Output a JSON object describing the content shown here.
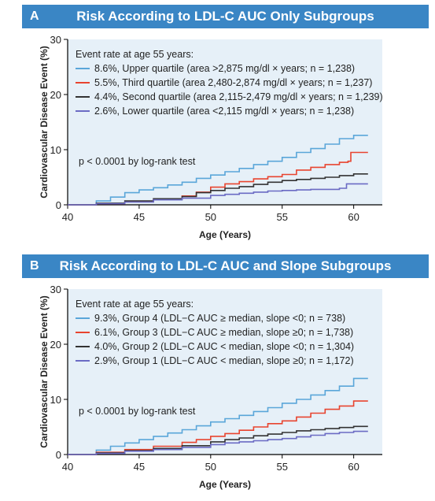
{
  "panels": [
    {
      "letter": "A",
      "title": "Risk According to LDL-C AUC Only Subgroups",
      "legend_header": "Event rate at age 55 years:",
      "pvalue": "p < 0.0001 by log-rank test"
    },
    {
      "letter": "B",
      "title": "Risk According to LDL-C AUC and Slope Subgroups",
      "legend_header": "Event rate at age 55 years:",
      "pvalue": "p < 0.0001 by log-rank test"
    }
  ],
  "chart_data": [
    {
      "type": "line",
      "title": "Risk According to LDL-C AUC Only Subgroups",
      "xlabel": "Age (Years)",
      "ylabel": "Cardiovascular Disease Event (%)",
      "xlim": [
        40,
        62
      ],
      "ylim": [
        0,
        30
      ],
      "xticks": [
        40,
        45,
        50,
        55,
        60
      ],
      "yticks": [
        0,
        10,
        20,
        30
      ],
      "grid": false,
      "legend_position": "top-left",
      "series": [
        {
          "name": "8.6%, Upper quartile (area >2,875 mg/dl × years; n = 1,238)",
          "color": "#5aa6d9",
          "points": [
            [
              40,
              0
            ],
            [
              42,
              0.7
            ],
            [
              43,
              1.4
            ],
            [
              44,
              2.2
            ],
            [
              45,
              2.7
            ],
            [
              46,
              3.1
            ],
            [
              47,
              3.6
            ],
            [
              48,
              4.1
            ],
            [
              49,
              4.8
            ],
            [
              50,
              5.4
            ],
            [
              51,
              6.0
            ],
            [
              52,
              6.6
            ],
            [
              53,
              7.3
            ],
            [
              54,
              7.9
            ],
            [
              55,
              8.6
            ],
            [
              56,
              9.5
            ],
            [
              57,
              10.2
            ],
            [
              58,
              11.0
            ],
            [
              59,
              12.0
            ],
            [
              60,
              12.6
            ],
            [
              61,
              12.6
            ]
          ]
        },
        {
          "name": "5.5%, Third quartile (area 2,480-2,874 mg/dl × years; n = 1,237)",
          "color": "#e8442f",
          "points": [
            [
              40,
              0
            ],
            [
              42,
              0.2
            ],
            [
              44,
              0.6
            ],
            [
              46,
              1.0
            ],
            [
              48,
              1.6
            ],
            [
              49,
              2.3
            ],
            [
              50,
              3.2
            ],
            [
              51,
              3.8
            ],
            [
              52,
              4.2
            ],
            [
              53,
              4.7
            ],
            [
              54,
              5.1
            ],
            [
              55,
              5.5
            ],
            [
              56,
              6.3
            ],
            [
              57,
              6.8
            ],
            [
              58,
              7.3
            ],
            [
              59,
              7.7
            ],
            [
              59.6,
              7.9
            ],
            [
              59.8,
              9.5
            ],
            [
              61,
              9.5
            ]
          ]
        },
        {
          "name": "4.4%, Second quartile (area 2,115-2,479 mg/dl × years; n = 1,239)",
          "color": "#333333",
          "points": [
            [
              40,
              0
            ],
            [
              42,
              0.3
            ],
            [
              44,
              0.7
            ],
            [
              46,
              1.1
            ],
            [
              48,
              1.5
            ],
            [
              49,
              2.2
            ],
            [
              50,
              2.6
            ],
            [
              51,
              3.0
            ],
            [
              52,
              3.3
            ],
            [
              53,
              3.7
            ],
            [
              54,
              4.1
            ],
            [
              55,
              4.4
            ],
            [
              56,
              4.6
            ],
            [
              57,
              4.8
            ],
            [
              58,
              5.0
            ],
            [
              59,
              5.3
            ],
            [
              60,
              5.6
            ],
            [
              61,
              5.6
            ]
          ]
        },
        {
          "name": "2.6%, Lower quartile (area <2,115 mg/dl × years; n = 1,238)",
          "color": "#6b6bc4",
          "points": [
            [
              40,
              0
            ],
            [
              42,
              0.2
            ],
            [
              44,
              0.5
            ],
            [
              46,
              0.9
            ],
            [
              48,
              1.2
            ],
            [
              50,
              1.7
            ],
            [
              51,
              1.9
            ],
            [
              52,
              2.1
            ],
            [
              53,
              2.3
            ],
            [
              54,
              2.5
            ],
            [
              55,
              2.6
            ],
            [
              56,
              2.7
            ],
            [
              57,
              2.8
            ],
            [
              58,
              2.8
            ],
            [
              59,
              3.0
            ],
            [
              59.5,
              3.8
            ],
            [
              61,
              3.8
            ]
          ]
        }
      ]
    },
    {
      "type": "line",
      "title": "Risk According to LDL-C AUC and Slope Subgroups",
      "xlabel": "Age (Years)",
      "ylabel": "Cardiovascular Disease Event (%)",
      "xlim": [
        40,
        62
      ],
      "ylim": [
        0,
        30
      ],
      "xticks": [
        40,
        45,
        50,
        55,
        60
      ],
      "yticks": [
        0,
        10,
        20,
        30
      ],
      "grid": false,
      "legend_position": "top-left",
      "series": [
        {
          "name": "9.3%, Group 4 (LDL−C AUC ≥ median, slope <0; n = 738)",
          "color": "#5aa6d9",
          "points": [
            [
              40,
              0
            ],
            [
              42,
              0.8
            ],
            [
              43,
              1.5
            ],
            [
              44,
              2.1
            ],
            [
              45,
              2.7
            ],
            [
              46,
              3.3
            ],
            [
              47,
              3.9
            ],
            [
              48,
              4.5
            ],
            [
              49,
              5.2
            ],
            [
              50,
              5.9
            ],
            [
              51,
              6.5
            ],
            [
              52,
              7.1
            ],
            [
              53,
              7.8
            ],
            [
              54,
              8.5
            ],
            [
              55,
              9.3
            ],
            [
              56,
              10.0
            ],
            [
              57,
              10.8
            ],
            [
              58,
              11.6
            ],
            [
              59,
              12.4
            ],
            [
              60,
              13.8
            ],
            [
              61,
              13.8
            ]
          ]
        },
        {
          "name": "6.1%, Group 3 (LDL−C AUC ≥ median, slope ≥0; n = 1,738)",
          "color": "#e8442f",
          "points": [
            [
              40,
              0
            ],
            [
              42,
              0.4
            ],
            [
              44,
              0.9
            ],
            [
              46,
              1.5
            ],
            [
              48,
              2.2
            ],
            [
              49,
              2.7
            ],
            [
              50,
              3.3
            ],
            [
              51,
              3.8
            ],
            [
              52,
              4.4
            ],
            [
              53,
              5.0
            ],
            [
              54,
              5.6
            ],
            [
              55,
              6.1
            ],
            [
              56,
              6.8
            ],
            [
              57,
              7.5
            ],
            [
              58,
              8.2
            ],
            [
              59,
              8.8
            ],
            [
              60,
              9.7
            ],
            [
              61,
              9.7
            ]
          ]
        },
        {
          "name": "4.0%, Group 2 (LDL−C AUC < median, slope <0; n = 1,304)",
          "color": "#333333",
          "points": [
            [
              40,
              0
            ],
            [
              42,
              0.3
            ],
            [
              44,
              0.7
            ],
            [
              46,
              1.1
            ],
            [
              48,
              1.6
            ],
            [
              50,
              2.3
            ],
            [
              51,
              2.7
            ],
            [
              52,
              3.0
            ],
            [
              53,
              3.4
            ],
            [
              54,
              3.7
            ],
            [
              55,
              4.0
            ],
            [
              56,
              4.3
            ],
            [
              57,
              4.5
            ],
            [
              58,
              4.7
            ],
            [
              59,
              4.9
            ],
            [
              60,
              5.1
            ],
            [
              61,
              5.1
            ]
          ]
        },
        {
          "name": "2.9%, Group 1 (LDL−C AUC < median, slope ≥0; n = 1,172)",
          "color": "#6b6bc4",
          "points": [
            [
              40,
              0
            ],
            [
              42,
              0.2
            ],
            [
              44,
              0.6
            ],
            [
              46,
              0.9
            ],
            [
              48,
              1.3
            ],
            [
              50,
              1.8
            ],
            [
              51,
              2.1
            ],
            [
              52,
              2.3
            ],
            [
              53,
              2.5
            ],
            [
              54,
              2.7
            ],
            [
              55,
              2.9
            ],
            [
              56,
              3.2
            ],
            [
              57,
              3.5
            ],
            [
              58,
              3.8
            ],
            [
              59,
              4.0
            ],
            [
              60,
              4.2
            ],
            [
              61,
              4.2
            ]
          ]
        }
      ]
    }
  ]
}
